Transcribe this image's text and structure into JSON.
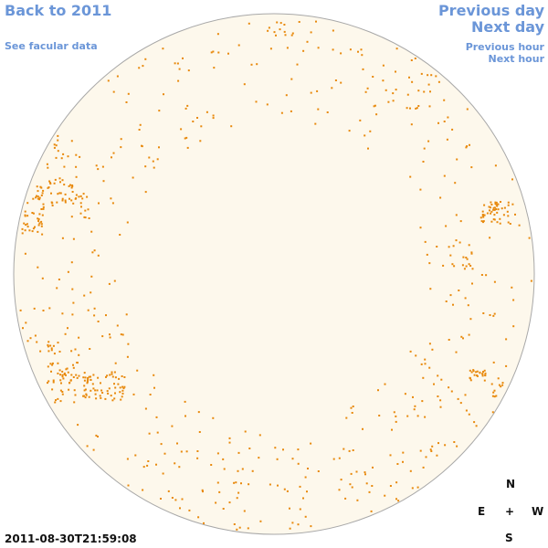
{
  "nav": {
    "back_label": "Back to 2011",
    "facular_label": "See facular data",
    "prev_day_label": "Previous day",
    "next_day_label": "Next day",
    "prev_hour_label": "Previous hour",
    "next_hour_label": "Next hour"
  },
  "compass": {
    "n": "N",
    "e": "E",
    "center": "+",
    "w": "W",
    "s": "S"
  },
  "timestamp": "2011-08-30T21:59:08",
  "colors": {
    "link": "#6b96d8",
    "disk_fill": "#fdf8ec",
    "disk_stroke": "#a8a8a8",
    "feature": "#e8890c"
  }
}
